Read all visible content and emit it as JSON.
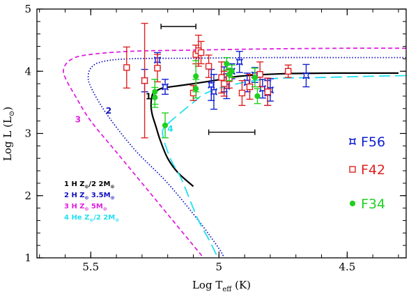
{
  "chart_data": {
    "type": "scatter",
    "title": "",
    "xlabel": "Log T",
    "xlabel_sub": "eff",
    "xlabel_unit": " (K)",
    "ylabel": "Log L (L",
    "ylabel_sun": "⊙",
    "ylabel_close": ")",
    "xlim": [
      5.71,
      4.27
    ],
    "ylim": [
      1,
      5
    ],
    "x_ticks": [
      {
        "value": 5.5,
        "label": "5.5"
      },
      {
        "value": 5.0,
        "label": "5"
      },
      {
        "value": 4.5,
        "label": "4.5"
      }
    ],
    "y_ticks": [
      {
        "value": 1,
        "label": "1"
      },
      {
        "value": 2,
        "label": "2"
      },
      {
        "value": 3,
        "label": "3"
      },
      {
        "value": 4,
        "label": "4"
      },
      {
        "value": 5,
        "label": "5"
      }
    ],
    "grid": false,
    "error_bars_reference": [
      {
        "x": [
          5.226,
          5.09
        ],
        "y": 4.72
      },
      {
        "x": [
          5.04,
          4.86
        ],
        "y": 3.02
      }
    ],
    "tracks": [
      {
        "id": "1",
        "label": "1",
        "color": "#000000",
        "style": "solid",
        "legend": {
          "number": "1",
          "element": "H",
          "z": "Z",
          "zsun": "⊙",
          "zfrac": "/2",
          "mass": "2M",
          "msun": "⊙"
        },
        "points": [
          [
            4.3,
            3.97
          ],
          [
            4.55,
            3.97
          ],
          [
            4.75,
            3.96
          ],
          [
            4.92,
            3.92
          ],
          [
            5.02,
            3.85
          ],
          [
            5.1,
            3.8
          ],
          [
            5.17,
            3.76
          ],
          [
            5.22,
            3.73
          ],
          [
            5.25,
            3.67
          ],
          [
            5.26,
            3.62
          ],
          [
            5.265,
            3.45
          ],
          [
            5.26,
            3.3
          ],
          [
            5.245,
            3.1
          ],
          [
            5.23,
            2.9
          ],
          [
            5.2,
            2.6
          ],
          [
            5.16,
            2.37
          ],
          [
            5.1,
            2.15
          ]
        ]
      },
      {
        "id": "2",
        "label": "2",
        "color": "#1010c0",
        "style": "dotted",
        "legend": {
          "number": "2",
          "element": "H",
          "z": "Z",
          "zsun": "⊙",
          "zfrac": "",
          "mass": "3.5M",
          "msun": "⊙"
        },
        "points": [
          [
            4.27,
            4.22
          ],
          [
            4.5,
            4.22
          ],
          [
            4.8,
            4.22
          ],
          [
            5.1,
            4.21
          ],
          [
            5.35,
            4.2
          ],
          [
            5.46,
            4.15
          ],
          [
            5.5,
            4.05
          ],
          [
            5.51,
            3.9
          ],
          [
            5.5,
            3.75
          ],
          [
            5.46,
            3.45
          ],
          [
            5.4,
            3.1
          ],
          [
            5.32,
            2.7
          ],
          [
            5.2,
            2.2
          ],
          [
            5.08,
            1.6
          ],
          [
            5.0,
            1.15
          ],
          [
            4.98,
            1.0
          ]
        ]
      },
      {
        "id": "3",
        "label": "3",
        "color": "#e020e0",
        "style": "dashed",
        "legend": {
          "number": "3",
          "element": "H",
          "z": "Z",
          "zsun": "⊙",
          "zfrac": "",
          "mass": "5M",
          "msun": "⊙"
        },
        "points": [
          [
            4.27,
            4.37
          ],
          [
            4.5,
            4.37
          ],
          [
            4.8,
            4.36
          ],
          [
            5.1,
            4.34
          ],
          [
            5.35,
            4.32
          ],
          [
            5.52,
            4.26
          ],
          [
            5.58,
            4.18
          ],
          [
            5.605,
            4.05
          ],
          [
            5.6,
            3.9
          ],
          [
            5.56,
            3.6
          ],
          [
            5.5,
            3.2
          ],
          [
            5.4,
            2.7
          ],
          [
            5.28,
            2.1
          ],
          [
            5.16,
            1.5
          ],
          [
            5.08,
            1.1
          ],
          [
            5.06,
            1.0
          ]
        ]
      },
      {
        "id": "4",
        "label": "4",
        "color": "#20e0f0",
        "style": "longdash",
        "legend": {
          "number": "4",
          "element": "He",
          "z": "Z",
          "zsun": "⊙",
          "zfrac": "/2",
          "mass": "2M",
          "msun": "⊙"
        },
        "points": [
          [
            4.27,
            3.93
          ],
          [
            4.4,
            3.92
          ],
          [
            4.6,
            3.9
          ],
          [
            4.8,
            3.88
          ],
          [
            4.95,
            3.78
          ],
          [
            5.05,
            3.65
          ],
          [
            5.1,
            3.5
          ],
          [
            5.15,
            3.33
          ],
          [
            5.2,
            3.15
          ],
          [
            5.22,
            3.0
          ],
          [
            5.19,
            2.6
          ],
          [
            5.15,
            2.3
          ],
          [
            5.12,
            2.0
          ],
          [
            5.08,
            1.6
          ],
          [
            5.04,
            1.3
          ],
          [
            5.01,
            1.05
          ]
        ]
      }
    ],
    "track_labels": [
      {
        "text": "1",
        "x": 5.275,
        "y": 3.55,
        "color": "#000000"
      },
      {
        "text": "2",
        "x": 5.43,
        "y": 3.32,
        "color": "#1010c0"
      },
      {
        "text": "3",
        "x": 5.55,
        "y": 3.18,
        "color": "#e020e0"
      },
      {
        "text": "4",
        "x": 5.19,
        "y": 3.03,
        "color": "#20e0f0"
      }
    ],
    "series": [
      {
        "name": "F56",
        "color": "#1020d0",
        "marker": "star",
        "points": [
          {
            "x": 5.29,
            "y": 3.85,
            "err": 0.18
          },
          {
            "x": 5.24,
            "y": 4.18,
            "err": 0.12
          },
          {
            "x": 5.21,
            "y": 3.75,
            "err": 0.12
          },
          {
            "x": 5.03,
            "y": 3.78,
            "err": 0.25
          },
          {
            "x": 5.02,
            "y": 3.67,
            "err": 0.28
          },
          {
            "x": 4.98,
            "y": 3.87,
            "err": 0.2
          },
          {
            "x": 4.97,
            "y": 3.76,
            "err": 0.2
          },
          {
            "x": 4.95,
            "y": 4.0,
            "err": 0.12
          },
          {
            "x": 4.92,
            "y": 4.15,
            "err": 0.17
          },
          {
            "x": 4.89,
            "y": 3.82,
            "err": 0.15
          },
          {
            "x": 4.86,
            "y": 3.94,
            "err": 0.12
          },
          {
            "x": 4.83,
            "y": 3.72,
            "err": 0.15
          },
          {
            "x": 4.81,
            "y": 3.65,
            "err": 0.2
          },
          {
            "x": 4.8,
            "y": 3.7,
            "err": 0.18
          },
          {
            "x": 4.66,
            "y": 3.93,
            "err": 0.18
          }
        ]
      },
      {
        "name": "F42",
        "color": "#e02020",
        "marker": "square",
        "points": [
          {
            "x": 5.36,
            "y": 4.06,
            "err": 0.33
          },
          {
            "x": 5.29,
            "y": 3.85,
            "err": 0.92
          },
          {
            "x": 5.24,
            "y": 4.05,
            "err": 0.22
          },
          {
            "x": 5.09,
            "y": 4.27,
            "err": 0.15
          },
          {
            "x": 5.08,
            "y": 4.33,
            "err": 0.25
          },
          {
            "x": 5.07,
            "y": 4.3,
            "err": 0.18
          },
          {
            "x": 5.1,
            "y": 3.65,
            "err": 0.12
          },
          {
            "x": 5.04,
            "y": 4.08,
            "err": 0.18
          },
          {
            "x": 4.99,
            "y": 3.9,
            "err": 0.25
          },
          {
            "x": 4.98,
            "y": 3.8,
            "err": 0.2
          },
          {
            "x": 4.96,
            "y": 3.88,
            "err": 0.15
          },
          {
            "x": 4.91,
            "y": 3.65,
            "err": 0.2
          },
          {
            "x": 4.88,
            "y": 3.75,
            "err": 0.2
          },
          {
            "x": 4.84,
            "y": 3.95,
            "err": 0.2
          },
          {
            "x": 4.81,
            "y": 3.67,
            "err": 0.22
          },
          {
            "x": 4.73,
            "y": 4.0,
            "err": 0.1
          }
        ]
      },
      {
        "name": "F34",
        "color": "#20d020",
        "marker": "circle",
        "points": [
          {
            "x": 5.25,
            "y": 3.67,
            "err": 0.2
          },
          {
            "x": 5.25,
            "y": 3.58,
            "err": 0.16
          },
          {
            "x": 5.21,
            "y": 3.13,
            "err": 0.2
          },
          {
            "x": 5.09,
            "y": 3.92,
            "err": 0.25
          },
          {
            "x": 5.09,
            "y": 3.72,
            "err": 0.15
          },
          {
            "x": 4.97,
            "y": 4.12,
            "err": 0.1
          },
          {
            "x": 4.96,
            "y": 3.95,
            "err": 0.1
          },
          {
            "x": 4.95,
            "y": 4.0,
            "err": 0.1
          },
          {
            "x": 4.86,
            "y": 3.9,
            "err": 0.15
          },
          {
            "x": 4.85,
            "y": 3.6,
            "err": 0.12
          }
        ]
      }
    ],
    "legend_tracks_placement": "bottom-left",
    "legend_series_placement": "right"
  }
}
